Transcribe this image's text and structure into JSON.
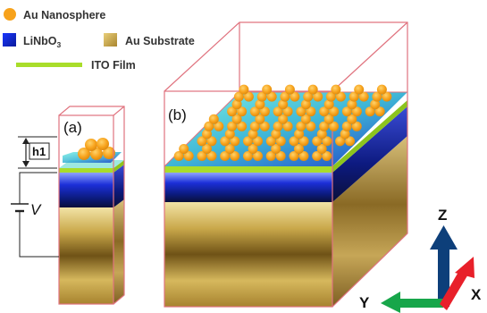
{
  "legend": {
    "nanosphere": "Au Nanosphere",
    "linbo3_base": "LiNbO",
    "linbo3_sub": "3",
    "substrate": "Au Substrate",
    "ito": "ITO Film"
  },
  "panels": {
    "a": "(a)",
    "b": "(b)"
  },
  "annotations": {
    "height": "h1",
    "voltage": "V"
  },
  "axes": {
    "z": "Z",
    "y": "Y",
    "x": "X"
  },
  "colors": {
    "nanosphere": "#f7a21b",
    "linbo3": "#1f2fd0",
    "substrate": "#c9a94a",
    "ito": "#a9dd2a",
    "outline": "#e0737f",
    "axis_z": "#0d3f7a",
    "axis_y": "#17a64a",
    "axis_x": "#e8202a"
  }
}
